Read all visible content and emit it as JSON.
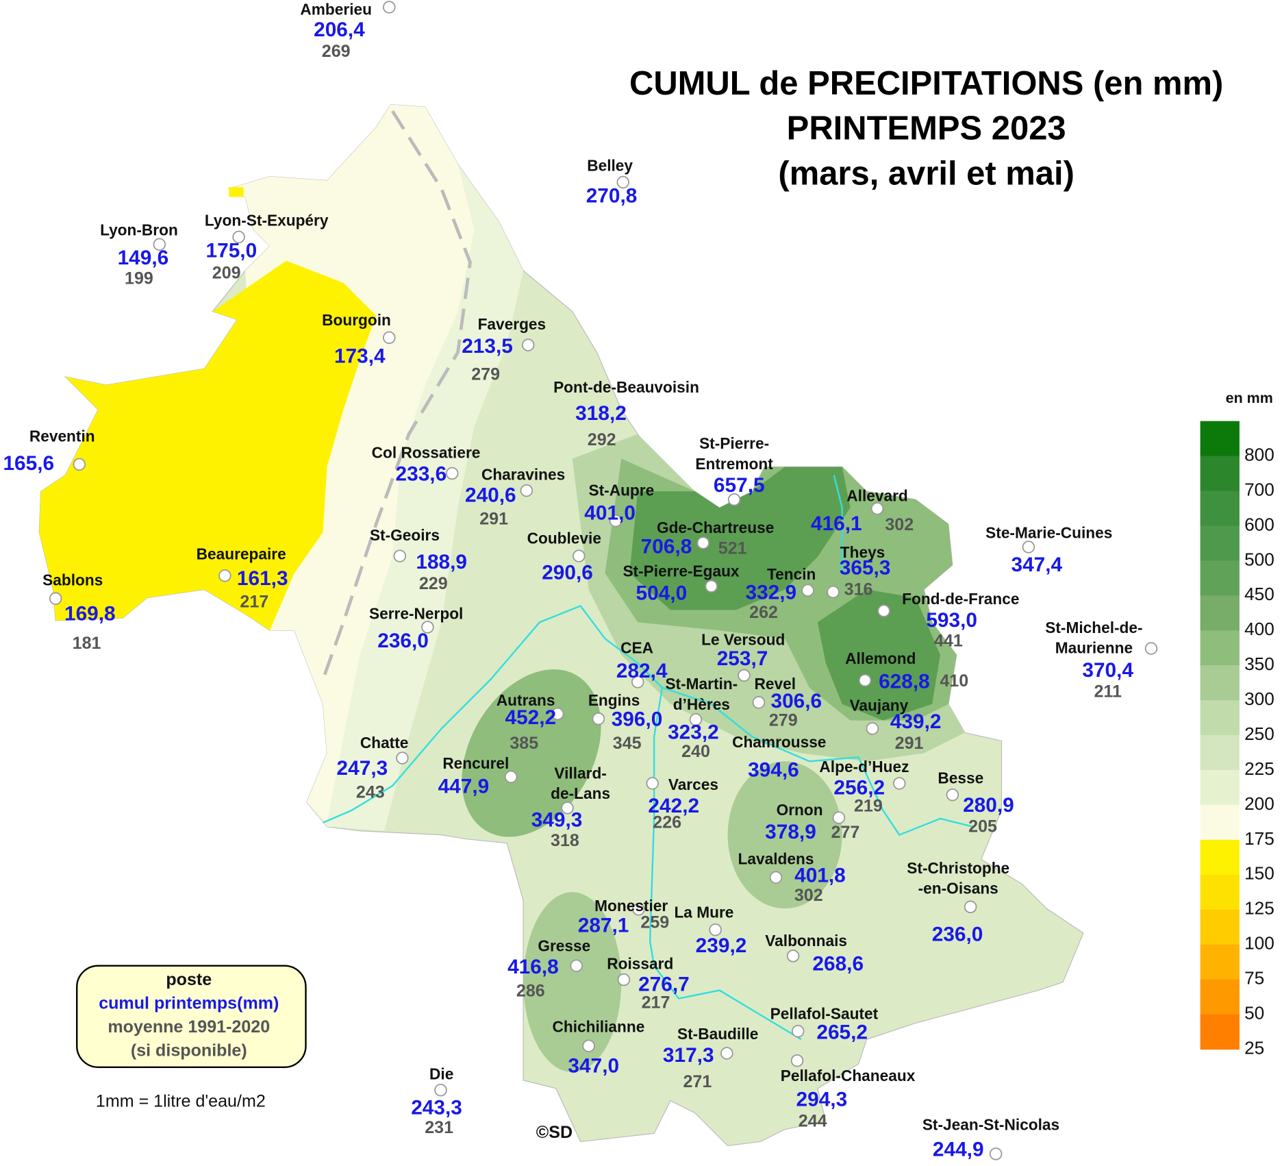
{
  "title": [
    "CUMUL de PRECIPITATIONS (en mm)",
    "PRINTEMPS 2023",
    "(mars, avril et mai)"
  ],
  "stations": [
    {
      "name": "Amberieu",
      "cumul": "206,4",
      "moyenne": "269"
    },
    {
      "name": "Belley",
      "cumul": "270,8"
    },
    {
      "name": "Lyon-Bron",
      "cumul": "149,6",
      "moyenne": "199"
    },
    {
      "name": "Lyon-St-Exupéry",
      "cumul": "175,0",
      "moyenne": "209"
    },
    {
      "name": "Bourgoin",
      "cumul": "173,4"
    },
    {
      "name": "Faverges",
      "cumul": "213,5",
      "moyenne": "279"
    },
    {
      "name": "Pont-de-Beauvoisin",
      "cumul": "318,2",
      "moyenne": "292"
    },
    {
      "name": "Reventin",
      "cumul": "165,6"
    },
    {
      "name": "Col Rossatiere",
      "cumul": "233,6"
    },
    {
      "name": "Charavines",
      "cumul": "240,6",
      "moyenne": "291"
    },
    {
      "name": "St-Aupre",
      "cumul": "401,0"
    },
    {
      "name": [
        "St-Pierre-",
        "Entremont"
      ],
      "cumul": "657,5"
    },
    {
      "name": "Allevard",
      "cumul": "416,1",
      "moyenne": "302"
    },
    {
      "name": "Gde-Chartreuse",
      "cumul": "706,8",
      "moyenne": "521"
    },
    {
      "name": "Ste-Marie-Cuines",
      "cumul": "347,4"
    },
    {
      "name": "St-Geoirs",
      "cumul": "188,9",
      "moyenne": "229"
    },
    {
      "name": "Coublevie",
      "cumul": "290,6"
    },
    {
      "name": "St-Pierre-Egaux",
      "cumul": "504,0"
    },
    {
      "name": "Tencin",
      "cumul": "332,9",
      "moyenne": "262"
    },
    {
      "name": "Theys",
      "cumul": "365,3",
      "moyenne": "316"
    },
    {
      "name": "Beaurepaire",
      "cumul": "161,3",
      "moyenne": "217"
    },
    {
      "name": "Sablons",
      "cumul": "169,8",
      "moyenne": "181"
    },
    {
      "name": "Fond-de-France",
      "cumul": "593,0",
      "moyenne": "441"
    },
    {
      "name": "Serre-Nerpol",
      "cumul": "236,0"
    },
    {
      "name": [
        "St-Michel-de-",
        "Maurienne"
      ],
      "cumul": "370,4",
      "moyenne": "211"
    },
    {
      "name": "Le Versoud",
      "cumul": "253,7"
    },
    {
      "name": "CEA",
      "cumul": "282,4"
    },
    {
      "name": "Allemond",
      "cumul": "628,8",
      "moyenne": "410"
    },
    {
      "name": [
        "St-Martin-",
        "d’Hères"
      ],
      "cumul": "323,2",
      "moyenne": "240"
    },
    {
      "name": "Revel",
      "cumul": "306,6",
      "moyenne": "279"
    },
    {
      "name": "Autrans",
      "cumul": "452,2",
      "moyenne": "385"
    },
    {
      "name": "Engins",
      "cumul": "396,0",
      "moyenne": "345"
    },
    {
      "name": "Vaujany",
      "cumul": "439,2",
      "moyenne": "291"
    },
    {
      "name": "Chamrousse",
      "cumul": "394,6"
    },
    {
      "name": "Chatte",
      "cumul": "247,3",
      "moyenne": "243"
    },
    {
      "name": "Rencurel",
      "cumul": "447,9"
    },
    {
      "name": [
        "Villard-",
        "de-Lans"
      ],
      "cumul": "349,3",
      "moyenne": "318"
    },
    {
      "name": "Alpe-d’Huez",
      "cumul": "256,2",
      "moyenne": "219"
    },
    {
      "name": "Besse",
      "cumul": "280,9",
      "moyenne": "205"
    },
    {
      "name": "Varces",
      "cumul": "242,2",
      "moyenne": "226"
    },
    {
      "name": "Ornon",
      "cumul": "378,9",
      "moyenne": "277"
    },
    {
      "name": "Lavaldens",
      "cumul": "401,8",
      "moyenne": "302"
    },
    {
      "name": [
        "St-Christophe",
        "-en-Oisans"
      ],
      "cumul": "236,0"
    },
    {
      "name": "Monestier",
      "cumul": "287,1",
      "moyenne": "259"
    },
    {
      "name": "La Mure",
      "cumul": "239,2"
    },
    {
      "name": "Valbonnais",
      "cumul": "268,6"
    },
    {
      "name": "Gresse",
      "cumul": "416,8",
      "moyenne": "286"
    },
    {
      "name": "Roissard",
      "cumul": "276,7",
      "moyenne": "217"
    },
    {
      "name": "Chichilianne",
      "cumul": "347,0"
    },
    {
      "name": "Pellafol-Sautet",
      "cumul": "265,2"
    },
    {
      "name": "St-Baudille",
      "cumul": "317,3",
      "moyenne": "271"
    },
    {
      "name": "Pellafol-Chaneaux",
      "cumul": "294,3",
      "moyenne": "244"
    },
    {
      "name": "Die",
      "cumul": "243,3",
      "moyenne": "231"
    },
    {
      "name": "St-Jean-St-Nicolas",
      "cumul": "244,9"
    }
  ],
  "scale": {
    "unit": "en mm",
    "labels": [
      "800",
      "700",
      "600",
      "500",
      "450",
      "400",
      "350",
      "300",
      "250",
      "225",
      "200",
      "175",
      "150",
      "125",
      "100",
      "75",
      "50",
      "25"
    ],
    "band_colors": [
      "#0b7a0b",
      "#2c862c",
      "#3f903f",
      "#4f994c",
      "#60a257",
      "#77ad68",
      "#8fbd7c",
      "#a9cc95",
      "#c1dbab",
      "#d4e6c0",
      "#e6f2cf",
      "#fbfbe3",
      "#fff200",
      "#ffe100",
      "#ffcc00",
      "#ffb300",
      "#ff9900",
      "#ff7f00"
    ]
  },
  "legend_box": [
    "poste",
    "cumul printemps(mm)",
    "moyenne 1991-2020",
    "(si disponible)"
  ],
  "note": "1mm = 1litre d'eau/m2",
  "copyright": "©SD"
}
